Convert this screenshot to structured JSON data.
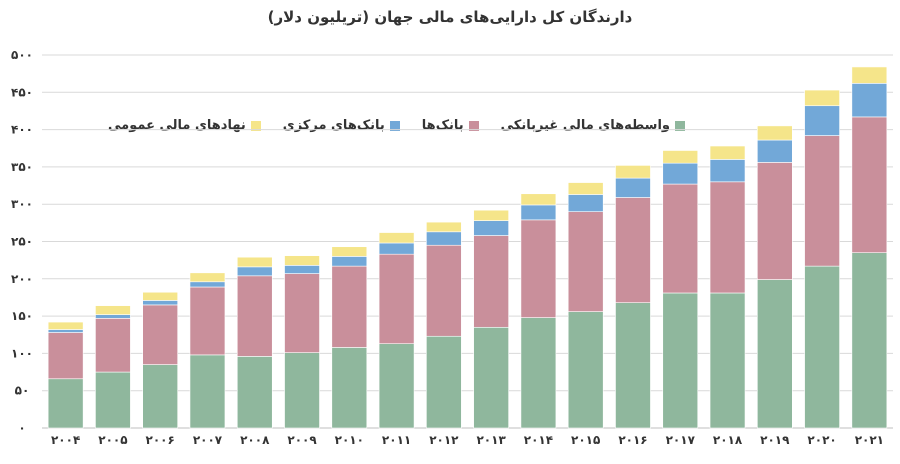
{
  "chart_data": {
    "type": "bar",
    "stacked": true,
    "title": "دارندگان کل دارایی‌های مالی جهان (تریلیون دلار)",
    "categories": [
      "۲۰۰۴",
      "۲۰۰۵",
      "۲۰۰۶",
      "۲۰۰۷",
      "۲۰۰۸",
      "۲۰۰۹",
      "۲۰۱۰",
      "۲۰۱۱",
      "۲۰۱۲",
      "۲۰۱۳",
      "۲۰۱۴",
      "۲۰۱۵",
      "۲۰۱۶",
      "۲۰۱۷",
      "۲۰۱۸",
      "۲۰۱۹",
      "۲۰۲۰",
      "۲۰۲۱"
    ],
    "series": [
      {
        "name": "واسطه‌های مالی غیربانکی",
        "color": "#8fb79d",
        "values": [
          66,
          75,
          85,
          98,
          96,
          101,
          108,
          113,
          123,
          135,
          148,
          156,
          168,
          181,
          181,
          199,
          217,
          235
        ]
      },
      {
        "name": "بانک‌ها",
        "color": "#c98f9b",
        "values": [
          62,
          72,
          80,
          91,
          108,
          106,
          109,
          120,
          122,
          123,
          131,
          134,
          141,
          146,
          149,
          157,
          175,
          182
        ]
      },
      {
        "name": "بانک‌های مرکزی",
        "color": "#72a8d8",
        "values": [
          4,
          5,
          6,
          7,
          12,
          11,
          13,
          15,
          18,
          20,
          20,
          23,
          26,
          28,
          30,
          30,
          40,
          45
        ]
      },
      {
        "name": "نهادهای مالی عمومی",
        "color": "#f5e58a",
        "values": [
          10,
          12,
          11,
          12,
          13,
          13,
          13,
          14,
          13,
          14,
          15,
          16,
          17,
          17,
          18,
          19,
          21,
          22
        ]
      }
    ],
    "yticks": [
      "۰",
      "۵۰",
      "۱۰۰",
      "۱۵۰",
      "۲۰۰",
      "۲۵۰",
      "۳۰۰",
      "۳۵۰",
      "۴۰۰",
      "۴۵۰",
      "۵۰۰"
    ],
    "ylim": [
      0,
      500
    ],
    "grid": true,
    "legend_position": "top-left"
  }
}
